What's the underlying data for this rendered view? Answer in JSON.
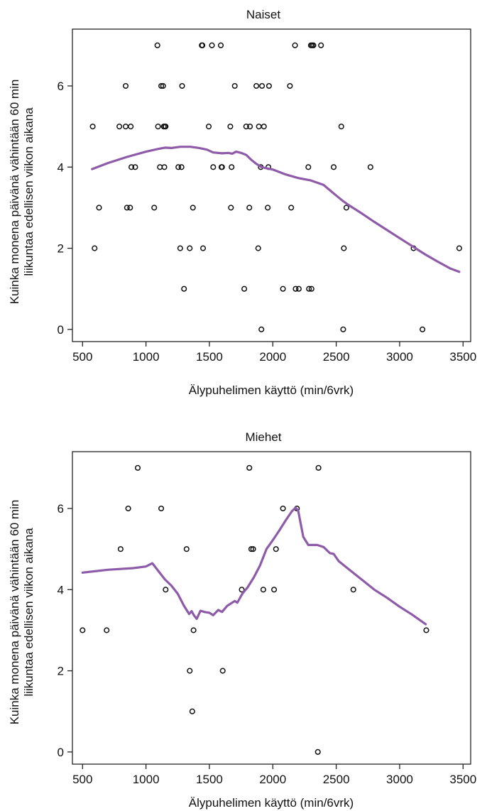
{
  "colors": {
    "smoother": "#8e5ba8",
    "points": "#111111",
    "frame": "#222222"
  },
  "chart_data": [
    {
      "type": "scatter",
      "title": "Naiset",
      "xlabel": "Älypuhelimen käyttö (min/6vrk)",
      "ylabel_lines": [
        "Kuinka monena päivänä vähintään 60 min",
        "liikuntaa edellisen viikon aikana"
      ],
      "xlim": [
        420,
        3560
      ],
      "ylim": [
        -0.3,
        7.4
      ],
      "xticks": [
        500,
        1000,
        1500,
        2000,
        2500,
        3000,
        3500
      ],
      "yticks": [
        0,
        2,
        4,
        6
      ],
      "grid": false,
      "points": [
        [
          580,
          5
        ],
        [
          595,
          2
        ],
        [
          630,
          3
        ],
        [
          790,
          5
        ],
        [
          840,
          6
        ],
        [
          840,
          5
        ],
        [
          850,
          3
        ],
        [
          875,
          3
        ],
        [
          880,
          5
        ],
        [
          885,
          4
        ],
        [
          915,
          4
        ],
        [
          1065,
          3
        ],
        [
          1090,
          7
        ],
        [
          1095,
          5
        ],
        [
          1110,
          4
        ],
        [
          1120,
          6
        ],
        [
          1135,
          6
        ],
        [
          1140,
          5
        ],
        [
          1145,
          4
        ],
        [
          1150,
          5
        ],
        [
          1155,
          5
        ],
        [
          1255,
          4
        ],
        [
          1270,
          2
        ],
        [
          1280,
          4
        ],
        [
          1285,
          6
        ],
        [
          1300,
          1
        ],
        [
          1345,
          2
        ],
        [
          1370,
          3
        ],
        [
          1440,
          7
        ],
        [
          1445,
          7
        ],
        [
          1450,
          2
        ],
        [
          1495,
          5
        ],
        [
          1520,
          7
        ],
        [
          1530,
          4
        ],
        [
          1590,
          7
        ],
        [
          1595,
          4
        ],
        [
          1600,
          4
        ],
        [
          1665,
          5
        ],
        [
          1670,
          3
        ],
        [
          1675,
          4
        ],
        [
          1700,
          6
        ],
        [
          1775,
          1
        ],
        [
          1790,
          5
        ],
        [
          1815,
          3
        ],
        [
          1820,
          5
        ],
        [
          1870,
          6
        ],
        [
          1885,
          2
        ],
        [
          1890,
          5
        ],
        [
          1905,
          4
        ],
        [
          1910,
          0
        ],
        [
          1915,
          6
        ],
        [
          1930,
          5
        ],
        [
          1960,
          3
        ],
        [
          1965,
          4
        ],
        [
          1970,
          6
        ],
        [
          2080,
          1
        ],
        [
          2135,
          6
        ],
        [
          2145,
          3
        ],
        [
          2175,
          7
        ],
        [
          2180,
          1
        ],
        [
          2205,
          1
        ],
        [
          2280,
          4
        ],
        [
          2285,
          1
        ],
        [
          2300,
          7
        ],
        [
          2305,
          1
        ],
        [
          2310,
          7
        ],
        [
          2320,
          7
        ],
        [
          2380,
          7
        ],
        [
          2480,
          4
        ],
        [
          2540,
          5
        ],
        [
          2555,
          0
        ],
        [
          2560,
          2
        ],
        [
          2580,
          3
        ],
        [
          2770,
          4
        ],
        [
          3110,
          2
        ],
        [
          3180,
          0
        ],
        [
          3470,
          2
        ]
      ],
      "smoother": [
        [
          575,
          3.95
        ],
        [
          700,
          4.1
        ],
        [
          850,
          4.25
        ],
        [
          1000,
          4.38
        ],
        [
          1100,
          4.45
        ],
        [
          1150,
          4.48
        ],
        [
          1200,
          4.47
        ],
        [
          1270,
          4.5
        ],
        [
          1350,
          4.5
        ],
        [
          1420,
          4.47
        ],
        [
          1480,
          4.43
        ],
        [
          1530,
          4.36
        ],
        [
          1600,
          4.34
        ],
        [
          1650,
          4.35
        ],
        [
          1680,
          4.33
        ],
        [
          1710,
          4.38
        ],
        [
          1750,
          4.35
        ],
        [
          1790,
          4.3
        ],
        [
          1830,
          4.18
        ],
        [
          1870,
          4.08
        ],
        [
          1910,
          4.0
        ],
        [
          1950,
          3.97
        ],
        [
          2000,
          3.94
        ],
        [
          2050,
          3.88
        ],
        [
          2100,
          3.82
        ],
        [
          2200,
          3.73
        ],
        [
          2300,
          3.67
        ],
        [
          2400,
          3.56
        ],
        [
          2450,
          3.43
        ],
        [
          2500,
          3.3
        ],
        [
          2550,
          3.17
        ],
        [
          2600,
          3.06
        ],
        [
          2700,
          2.86
        ],
        [
          2800,
          2.65
        ],
        [
          2900,
          2.45
        ],
        [
          3000,
          2.25
        ],
        [
          3100,
          2.05
        ],
        [
          3200,
          1.85
        ],
        [
          3300,
          1.67
        ],
        [
          3400,
          1.5
        ],
        [
          3470,
          1.42
        ]
      ]
    },
    {
      "type": "scatter",
      "title": "Miehet",
      "xlabel": "Älypuhelimen käyttö (min/6vrk)",
      "ylabel_lines": [
        "Kuinka monena päivänä vähintään 60 min",
        "liikuntaa edellisen viikon aikana"
      ],
      "xlim": [
        420,
        3560
      ],
      "ylim": [
        -0.3,
        7.4
      ],
      "xticks": [
        500,
        1000,
        1500,
        2000,
        2500,
        3000,
        3500
      ],
      "yticks": [
        0,
        2,
        4,
        6
      ],
      "grid": false,
      "points": [
        [
          500,
          3
        ],
        [
          690,
          3
        ],
        [
          800,
          5
        ],
        [
          860,
          6
        ],
        [
          935,
          7
        ],
        [
          1120,
          6
        ],
        [
          1155,
          4
        ],
        [
          1320,
          5
        ],
        [
          1345,
          2
        ],
        [
          1365,
          1
        ],
        [
          1375,
          3
        ],
        [
          1605,
          2
        ],
        [
          1755,
          4
        ],
        [
          1815,
          7
        ],
        [
          1830,
          5
        ],
        [
          1845,
          5
        ],
        [
          1925,
          4
        ],
        [
          2010,
          4
        ],
        [
          2025,
          5
        ],
        [
          2080,
          6
        ],
        [
          2190,
          6
        ],
        [
          2355,
          0
        ],
        [
          2360,
          7
        ],
        [
          2635,
          4
        ],
        [
          3210,
          3
        ]
      ],
      "smoother": [
        [
          500,
          4.42
        ],
        [
          700,
          4.49
        ],
        [
          900,
          4.53
        ],
        [
          1000,
          4.57
        ],
        [
          1050,
          4.65
        ],
        [
          1100,
          4.45
        ],
        [
          1150,
          4.25
        ],
        [
          1200,
          4.1
        ],
        [
          1250,
          3.9
        ],
        [
          1300,
          3.6
        ],
        [
          1340,
          3.4
        ],
        [
          1360,
          3.47
        ],
        [
          1380,
          3.36
        ],
        [
          1400,
          3.28
        ],
        [
          1430,
          3.48
        ],
        [
          1460,
          3.45
        ],
        [
          1500,
          3.43
        ],
        [
          1530,
          3.37
        ],
        [
          1570,
          3.5
        ],
        [
          1600,
          3.45
        ],
        [
          1640,
          3.6
        ],
        [
          1700,
          3.72
        ],
        [
          1720,
          3.68
        ],
        [
          1760,
          3.9
        ],
        [
          1800,
          4.05
        ],
        [
          1850,
          4.3
        ],
        [
          1900,
          4.6
        ],
        [
          1950,
          5.0
        ],
        [
          2000,
          5.22
        ],
        [
          2050,
          5.45
        ],
        [
          2100,
          5.7
        ],
        [
          2150,
          5.93
        ],
        [
          2180,
          6.02
        ],
        [
          2200,
          5.95
        ],
        [
          2240,
          5.3
        ],
        [
          2280,
          5.1
        ],
        [
          2350,
          5.1
        ],
        [
          2400,
          5.05
        ],
        [
          2450,
          4.9
        ],
        [
          2480,
          4.88
        ],
        [
          2520,
          4.7
        ],
        [
          2600,
          4.5
        ],
        [
          2700,
          4.25
        ],
        [
          2800,
          4.0
        ],
        [
          2900,
          3.8
        ],
        [
          3000,
          3.58
        ],
        [
          3100,
          3.38
        ],
        [
          3205,
          3.15
        ]
      ]
    }
  ]
}
